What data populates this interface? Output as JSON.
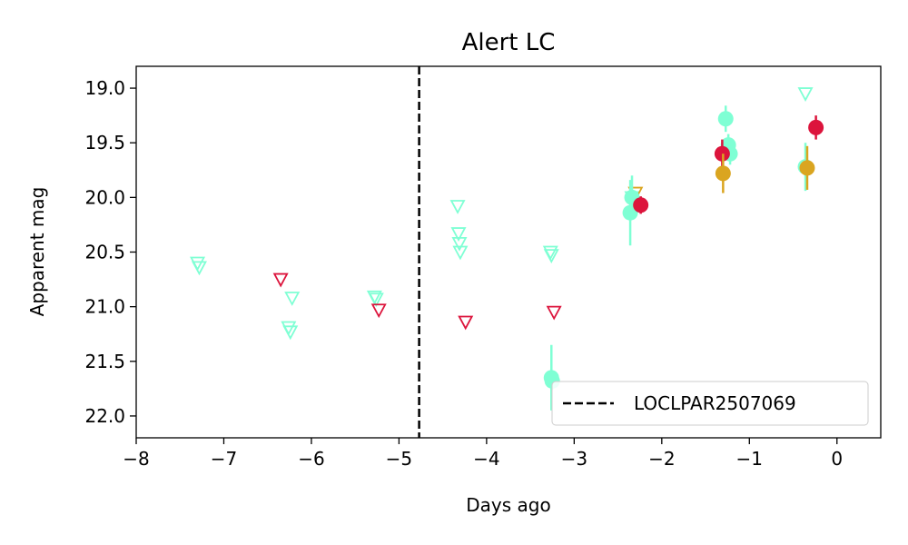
{
  "chart_data": {
    "type": "scatter",
    "title": "Alert LC",
    "xlabel": "Days ago",
    "ylabel": "Apparent mag",
    "xlim": [
      -8,
      0.5
    ],
    "ylim": [
      22.2,
      18.8
    ],
    "y_inverted": true,
    "x_ticks": [
      -8,
      -7,
      -6,
      -5,
      -4,
      -3,
      -2,
      -1,
      0
    ],
    "x_tick_labels": [
      "−8",
      "−7",
      "−6",
      "−5",
      "−4",
      "−3",
      "−2",
      "−1",
      "0"
    ],
    "y_ticks": [
      19.0,
      19.5,
      20.0,
      20.5,
      21.0,
      21.5,
      22.0
    ],
    "y_tick_labels": [
      "19.0",
      "19.5",
      "20.0",
      "20.5",
      "21.0",
      "21.5",
      "22.0"
    ],
    "vline": {
      "x": -4.77,
      "style": "dashed",
      "color": "#000000",
      "label": "LOCLPAR2507069"
    },
    "legend": {
      "position": "lower right",
      "entries": [
        "LOCLPAR2507069"
      ]
    },
    "grid": false,
    "series": [
      {
        "color": "#7fffd4",
        "detections": [
          {
            "x": -3.26,
            "y": 21.65,
            "err": 0.3
          },
          {
            "x": -3.25,
            "y": 21.68,
            "err": 0.08
          },
          {
            "x": -2.36,
            "y": 20.14,
            "err": 0.3
          },
          {
            "x": -2.34,
            "y": 20.0,
            "err": 0.2
          },
          {
            "x": -1.27,
            "y": 19.28,
            "err": 0.12
          },
          {
            "x": -1.24,
            "y": 19.52,
            "err": 0.1
          },
          {
            "x": -1.22,
            "y": 19.6,
            "err": 0.1
          },
          {
            "x": -0.36,
            "y": 19.72,
            "err": 0.22
          }
        ],
        "upper_limits": [
          {
            "x": -7.3,
            "y": 20.6
          },
          {
            "x": -7.28,
            "y": 20.64
          },
          {
            "x": -6.22,
            "y": 20.92
          },
          {
            "x": -6.26,
            "y": 21.19
          },
          {
            "x": -6.24,
            "y": 21.23
          },
          {
            "x": -5.28,
            "y": 20.91
          },
          {
            "x": -5.26,
            "y": 20.93
          },
          {
            "x": -4.33,
            "y": 20.08
          },
          {
            "x": -4.32,
            "y": 20.33
          },
          {
            "x": -4.31,
            "y": 20.42
          },
          {
            "x": -4.3,
            "y": 20.5
          },
          {
            "x": -3.27,
            "y": 20.5
          },
          {
            "x": -3.26,
            "y": 20.53
          },
          {
            "x": -2.34,
            "y": 20.0
          },
          {
            "x": -0.36,
            "y": 19.05
          }
        ]
      },
      {
        "color": "#dc143c",
        "detections": [
          {
            "x": -2.24,
            "y": 20.07,
            "err": 0.08
          },
          {
            "x": -1.31,
            "y": 19.6,
            "err": 0.13
          },
          {
            "x": -0.24,
            "y": 19.36,
            "err": 0.11
          }
        ],
        "upper_limits": [
          {
            "x": -6.35,
            "y": 20.75
          },
          {
            "x": -5.23,
            "y": 21.03
          },
          {
            "x": -4.24,
            "y": 21.14
          },
          {
            "x": -3.23,
            "y": 21.05
          }
        ]
      },
      {
        "color": "#daa520",
        "detections": [
          {
            "x": -1.3,
            "y": 19.78,
            "err": 0.18
          },
          {
            "x": -0.34,
            "y": 19.73,
            "err": 0.2
          }
        ],
        "upper_limits": [
          {
            "x": -2.3,
            "y": 19.96
          }
        ]
      }
    ]
  }
}
